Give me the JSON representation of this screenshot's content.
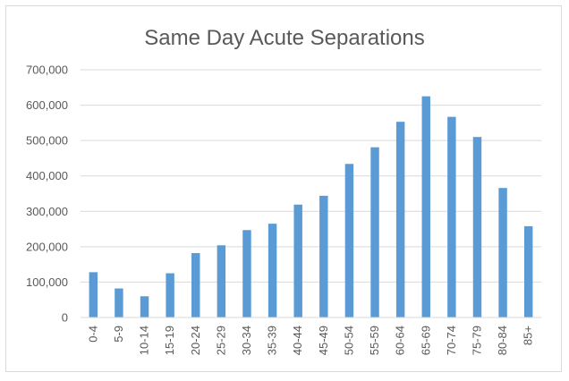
{
  "chart_data": {
    "type": "bar",
    "title": "Same Day Acute Separations",
    "xlabel": "",
    "ylabel": "",
    "categories": [
      "0-4",
      "5-9",
      "10-14",
      "15-19",
      "20-24",
      "25-29",
      "30-34",
      "35-39",
      "40-44",
      "45-49",
      "50-54",
      "55-59",
      "60-64",
      "65-69",
      "70-74",
      "75-79",
      "80-84",
      "85+"
    ],
    "values": [
      128000,
      82000,
      60000,
      125000,
      182000,
      204000,
      247000,
      265000,
      319000,
      344000,
      434000,
      481000,
      553000,
      625000,
      567000,
      510000,
      366000,
      258000
    ],
    "yticks": [
      "0",
      "100,000",
      "200,000",
      "300,000",
      "400,000",
      "500,000",
      "600,000",
      "700,000"
    ],
    "ylim": [
      0,
      700000
    ],
    "grid": true,
    "legend": "none",
    "bar_color": "#5b9bd5",
    "grid_color": "#d9d9d9",
    "text_color": "#595959"
  }
}
